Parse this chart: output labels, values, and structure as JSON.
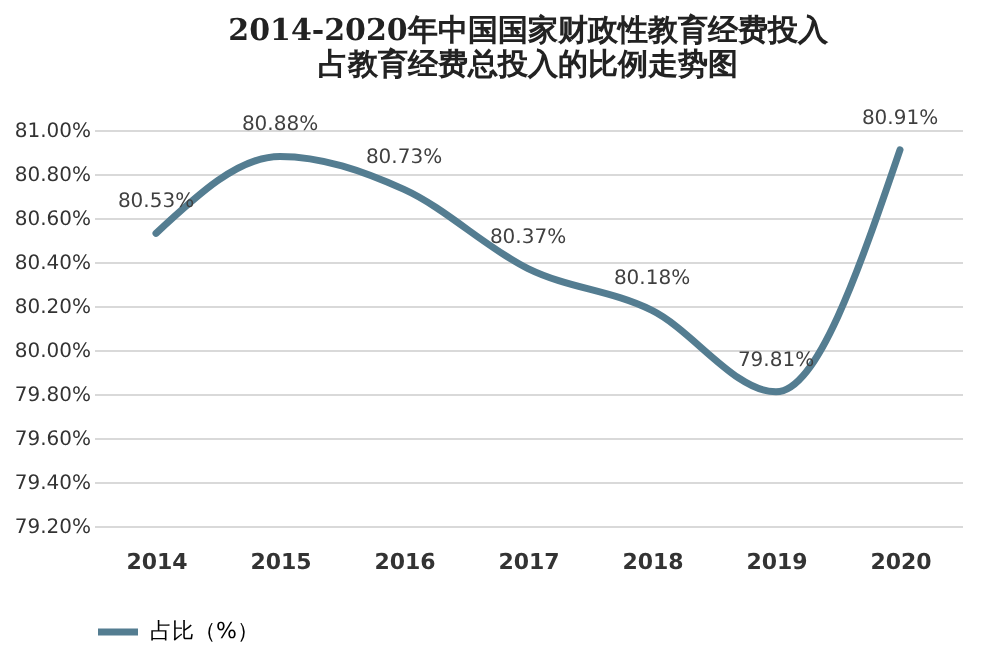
{
  "chart_data": {
    "type": "line",
    "title": "2014-2020年中国国家财政性教育经费投入占教育经费总投入的比例走势图",
    "categories": [
      "2014",
      "2015",
      "2016",
      "2017",
      "2018",
      "2019",
      "2020"
    ],
    "series": [
      {
        "name": "占比（%）",
        "color": "#547d91",
        "values": [
          80.53,
          80.88,
          80.73,
          80.37,
          80.18,
          79.81,
          80.91
        ],
        "value_labels": [
          "80.53%",
          "80.88%",
          "80.73%",
          "80.37%",
          "80.18%",
          "79.81%",
          "80.91%"
        ]
      }
    ],
    "ylim": [
      79.2,
      81.0
    ],
    "yticks": [
      {
        "value": 79.2,
        "label": "79.20%"
      },
      {
        "value": 79.4,
        "label": "79.40%"
      },
      {
        "value": 79.6,
        "label": "79.60%"
      },
      {
        "value": 79.8,
        "label": "79.80%"
      },
      {
        "value": 80.0,
        "label": "80.00%"
      },
      {
        "value": 80.2,
        "label": "80.20%"
      },
      {
        "value": 80.4,
        "label": "80.40%"
      },
      {
        "value": 80.6,
        "label": "80.60%"
      },
      {
        "value": 80.8,
        "label": "80.80%"
      },
      {
        "value": 81.0,
        "label": "81.00%"
      }
    ],
    "grid": "y",
    "legend": "bottom",
    "marker": "none",
    "line_style": "solid"
  }
}
